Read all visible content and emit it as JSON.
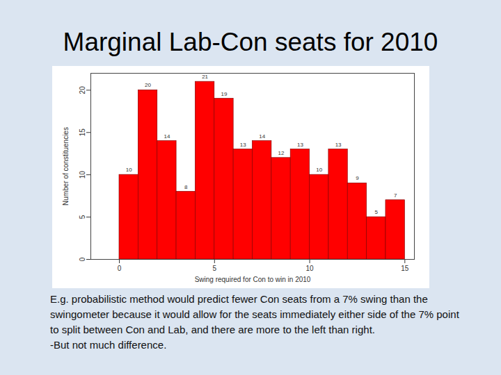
{
  "chart_data": {
    "type": "histogram",
    "title": "Marginal Lab-Con seats for 2010",
    "x_label": "Swing required for Con to win in 2010",
    "y_label": "Number of constituencies",
    "bins": [
      0,
      1,
      2,
      3,
      4,
      5,
      6,
      7,
      8,
      9,
      10,
      11,
      12,
      13,
      14,
      15
    ],
    "values": [
      10,
      20,
      14,
      8,
      21,
      19,
      13,
      14,
      12,
      13,
      10,
      13,
      9,
      5,
      7
    ],
    "color": "#ff0000",
    "xlim": [
      -1.5,
      15.5
    ],
    "xticks": [
      0,
      5,
      10,
      15
    ],
    "ylim": [
      0,
      22
    ],
    "yticks": [
      0,
      5,
      10,
      15,
      20
    ],
    "grid": false,
    "data_labels": true,
    "caption": [
      "E.g. probabilistic method would predict fewer Con seats from a 7% swing than the swingometer because it would allow for the seats immediately either side of the 7% point to split between Con and Lab, and there are more to the left than right.",
      "-But not much difference."
    ]
  }
}
